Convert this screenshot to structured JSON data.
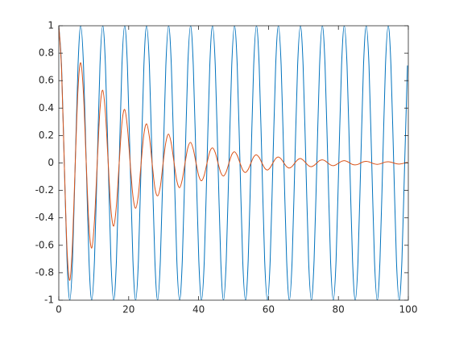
{
  "chart_data": {
    "type": "line",
    "x": [
      0,
      0.79,
      1.57,
      2.36,
      3.14,
      3.93,
      4.71,
      5.5,
      6.28,
      7.07,
      7.85,
      8.64,
      9.42,
      10.21,
      11,
      11.78,
      12.57,
      13.35,
      14.14,
      14.92,
      15.71,
      16.49,
      17.28,
      18.06,
      18.85,
      19.63,
      20.42,
      21.21,
      21.99,
      22.78,
      23.56,
      24.35,
      25.13,
      25.92,
      26.7,
      27.49,
      28.27,
      29.06,
      29.85,
      30.63,
      31.42,
      32.2,
      32.99,
      33.77,
      34.56,
      35.34,
      36.13,
      36.91,
      37.7,
      38.48,
      39.27,
      40.06,
      40.84,
      41.63,
      42.41,
      43.2,
      43.98,
      44.77,
      45.55,
      46.34,
      47.12,
      47.91,
      48.69,
      49.48,
      50.27,
      51.05,
      51.84,
      52.62,
      53.41,
      54.19,
      54.98,
      55.76,
      56.55,
      57.33,
      58.12,
      58.9,
      59.69,
      60.48,
      61.26,
      62.05,
      62.83,
      63.62,
      64.4,
      65.19,
      65.97,
      66.76,
      67.54,
      68.33,
      69.12,
      69.9,
      70.69,
      71.47,
      72.26,
      73.04,
      73.83,
      74.61,
      75.4,
      76.18,
      76.97,
      77.75,
      78.54,
      79.33,
      80.11,
      80.9,
      81.68,
      82.47,
      83.25,
      84.04,
      84.82,
      85.61,
      86.39,
      87.18,
      87.96,
      88.75,
      89.54,
      90.32,
      91.11,
      91.89,
      92.68,
      93.46,
      94.25,
      95.03,
      95.82,
      96.6,
      97.39,
      98.17,
      98.96,
      99.75
    ],
    "series": [
      {
        "color": "#0072bd",
        "values": [
          1,
          0.71,
          0,
          -0.71,
          -1,
          -0.71,
          0,
          0.71,
          1,
          0.71,
          0,
          -0.71,
          -1,
          -0.71,
          0,
          0.71,
          1,
          0.71,
          0,
          -0.71,
          -1,
          -0.71,
          0,
          0.71,
          1,
          0.71,
          0,
          -0.71,
          -1,
          -0.71,
          0,
          0.71,
          1,
          0.71,
          0,
          -0.71,
          -1,
          -0.71,
          0,
          0.71,
          1,
          0.71,
          0,
          -0.71,
          -1,
          -0.71,
          0,
          0.71,
          1,
          0.71,
          0,
          -0.71,
          -1,
          -0.71,
          0,
          0.71,
          1,
          0.71,
          0,
          -0.71,
          -1,
          -0.71,
          0,
          0.71,
          1,
          0.71,
          0,
          -0.71,
          -1,
          -0.71,
          0,
          0.71,
          1,
          0.71,
          0,
          -0.71,
          -1,
          -0.71,
          0,
          0.71,
          1,
          0.71,
          0,
          -0.71,
          -1,
          -0.71,
          0,
          0.71,
          1,
          0.71,
          0,
          -0.71,
          -1,
          -0.71,
          0,
          0.71,
          1,
          0.71,
          0,
          -0.71,
          -1,
          -0.71,
          0,
          0.71,
          1,
          0.71,
          0,
          -0.71,
          -1,
          -0.71,
          0,
          0.71,
          1,
          0.71,
          0,
          -0.71,
          -1,
          -0.71,
          0,
          0.71,
          1,
          0.71,
          0,
          -0.71,
          -1,
          -0.71,
          0,
          0.71
        ]
      },
      {
        "color": "#d95319",
        "values": [
          1,
          0.68,
          0,
          -0.63,
          -0.855,
          -0.58,
          0,
          0.54,
          0.73,
          0.5,
          0,
          -0.46,
          -0.62,
          -0.42,
          0,
          0.39,
          0.53,
          0.36,
          0,
          -0.34,
          -0.46,
          -0.31,
          0,
          0.29,
          0.39,
          0.26,
          0,
          -0.24,
          -0.33,
          -0.23,
          0,
          0.21,
          0.285,
          0.19,
          0,
          -0.18,
          -0.24,
          -0.17,
          0,
          0.15,
          0.21,
          0.14,
          0,
          -0.13,
          -0.18,
          -0.12,
          0,
          0.11,
          0.15,
          0.1,
          0,
          -0.095,
          -0.13,
          -0.088,
          0,
          0.082,
          0.11,
          0.075,
          0,
          -0.07,
          -0.095,
          -0.064,
          0,
          0.06,
          0.081,
          0.055,
          0,
          -0.051,
          -0.069,
          -0.047,
          0,
          0.044,
          0.059,
          0.04,
          0,
          -0.037,
          -0.051,
          -0.034,
          0,
          0.032,
          0.043,
          0.029,
          0,
          -0.027,
          -0.037,
          -0.025,
          0,
          0.023,
          0.032,
          0.021,
          0,
          -0.02,
          -0.027,
          -0.018,
          0,
          0.017,
          0.023,
          0.016,
          0,
          -0.014,
          -0.02,
          -0.013,
          0,
          0.012,
          0.017,
          0.011,
          0,
          -0.011,
          -0.014,
          -0.01,
          0,
          0.009,
          0.012,
          0.008,
          0,
          -0.007,
          -0.01,
          -0.007,
          0,
          0.007,
          0.009,
          0.006,
          0,
          -0.006,
          -0.008,
          -0.005,
          0,
          0.005
        ]
      }
    ],
    "xlim": [
      0,
      100
    ],
    "xticks": [
      0,
      20,
      40,
      60,
      80,
      100
    ],
    "ylim": [
      -1,
      1
    ],
    "yticks": [
      -1,
      -0.8,
      -0.6,
      -0.4,
      -0.2,
      0,
      0.2,
      0.4,
      0.6,
      0.8,
      1
    ]
  }
}
